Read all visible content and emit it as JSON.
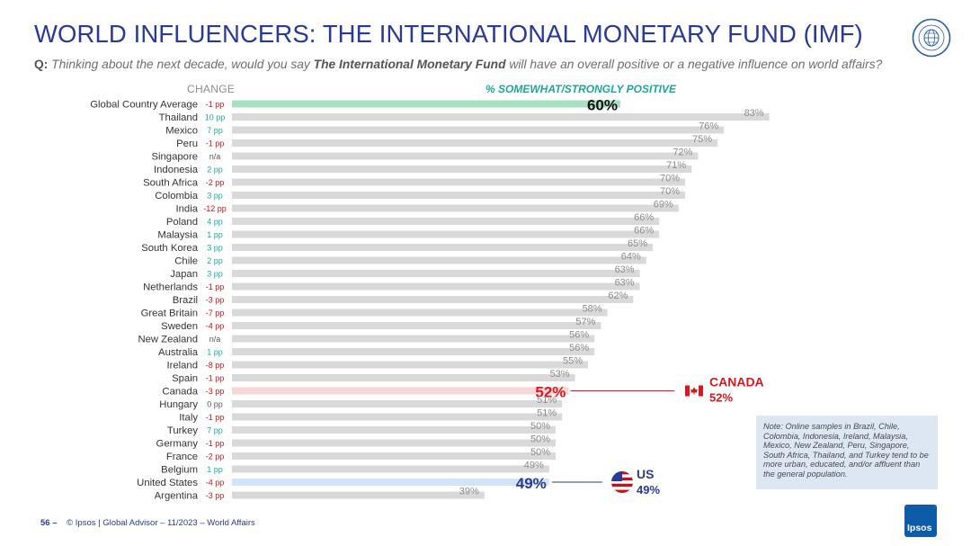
{
  "page": {
    "title": "WORLD INFLUENCERS: THE INTERNATIONAL MONETARY FUND (IMF)",
    "question_prefix": "Q:",
    "question_part1": "Thinking about the next decade, would you say",
    "question_subject": "The International Monetary Fund",
    "question_part2": "will have an overall positive or a negative influence on world affairs?",
    "change_header": "CHANGE",
    "positive_header": "% SOMEWHAT/STRONGLY POSITIVE",
    "note": "Note: Online samples in Brazil, Chile, Colombia, Indonesia, Ireland, Malaysia, Mexico, New Zealand, Peru, Singapore, South Africa, Thailand, and Turkey tend to be more urban, educated, and/or affluent than the general population.",
    "footer_page": "56 –",
    "footer_text": "© Ipsos | Global Advisor – 11/2023 – World Affairs",
    "logo_text": "Ipsos"
  },
  "colors": {
    "bar": "#d9d9d9",
    "global_bar": "#a8e0c2",
    "canada_bar": "#f8d6d6",
    "us_bar": "#d2e4f7",
    "positive_change": "#1fa69a",
    "negative_change": "#c0161b",
    "neutral_change": "#555555",
    "canada": "#d7191f",
    "us": "#2a3a94"
  },
  "chart_data": {
    "type": "bar",
    "orientation": "horizontal",
    "unit": "%",
    "xlim": [
      0,
      100
    ],
    "categories": [
      "Global Country Average",
      "Thailand",
      "Mexico",
      "Peru",
      "Singapore",
      "Indonesia",
      "South Africa",
      "Colombia",
      "India",
      "Poland",
      "Malaysia",
      "South Korea",
      "Chile",
      "Japan",
      "Netherlands",
      "Brazil",
      "Great Britain",
      "Sweden",
      "New Zealand",
      "Australia",
      "Ireland",
      "Spain",
      "Canada",
      "Hungary",
      "Italy",
      "Turkey",
      "Germany",
      "France",
      "Belgium",
      "United States",
      "Argentina"
    ],
    "values": [
      60,
      83,
      76,
      75,
      72,
      71,
      70,
      70,
      69,
      66,
      66,
      65,
      64,
      63,
      63,
      62,
      58,
      57,
      56,
      56,
      55,
      53,
      52,
      51,
      51,
      50,
      50,
      50,
      49,
      49,
      39
    ],
    "change": [
      "-1 pp",
      "10 pp",
      "7 pp",
      "-1 pp",
      "n/a",
      "2 pp",
      "-2 pp",
      "3 pp",
      "-12 pp",
      "4 pp",
      "1 pp",
      "3 pp",
      "2 pp",
      "3 pp",
      "-1 pp",
      "-3 pp",
      "-7 pp",
      "-4 pp",
      "n/a",
      "1 pp",
      "-8 pp",
      "-1 pp",
      "-3 pp",
      "0 pp",
      "-1 pp",
      "7 pp",
      "-1 pp",
      "-2 pp",
      "1 pp",
      "-4 pp",
      "-3 pp"
    ],
    "callouts": [
      {
        "country": "Canada",
        "label": "CANADA",
        "value": "52%"
      },
      {
        "country": "United States",
        "label": "US",
        "value": "49%"
      }
    ]
  }
}
